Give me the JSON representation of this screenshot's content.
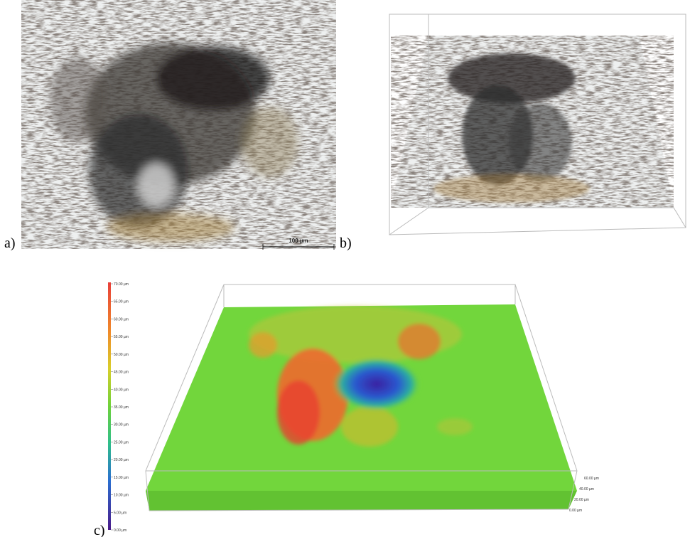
{
  "panels": {
    "a": {
      "label": "a)",
      "scale_bar": "100 µm"
    },
    "b": {
      "label": "b)"
    },
    "c": {
      "label": "c)",
      "colorbar_labels": [
        "70.00 µm",
        "65.00 µm",
        "60.00 µm",
        "55.00 µm",
        "50.00 µm",
        "45.00 µm",
        "40.00 µm",
        "35.00 µm",
        "30.00 µm",
        "25.00 µm",
        "20.00 µm",
        "15.00 µm",
        "10.00 µm",
        "5.00 µm",
        "0.00 µm"
      ],
      "axis_labels": [
        "60.00 µm",
        "40.00 µm",
        "20.00 µm",
        "0.00 µm"
      ]
    }
  }
}
